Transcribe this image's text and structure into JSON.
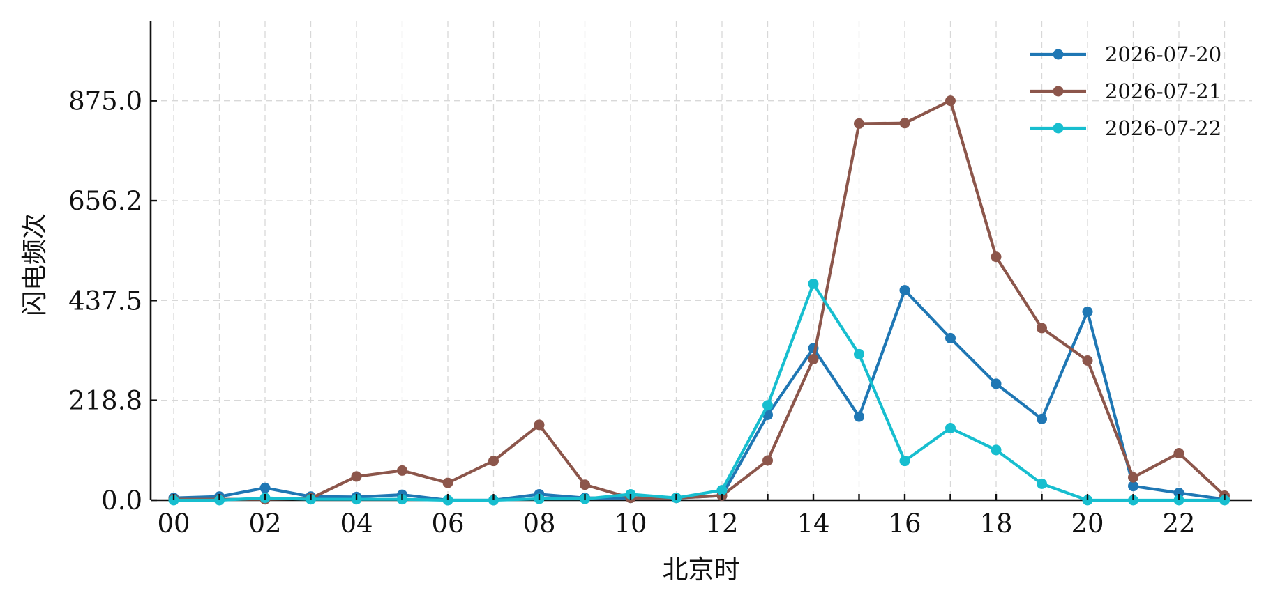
{
  "chart_data": {
    "type": "line",
    "title": "",
    "xlabel": "北京时",
    "ylabel": "闪电频次",
    "x": [
      "00",
      "01",
      "02",
      "03",
      "04",
      "05",
      "06",
      "07",
      "08",
      "09",
      "10",
      "11",
      "12",
      "13",
      "14",
      "15",
      "16",
      "17",
      "18",
      "19",
      "20",
      "21",
      "22",
      "23"
    ],
    "x_tick_labels": [
      "00",
      "02",
      "04",
      "06",
      "08",
      "10",
      "12",
      "14",
      "16",
      "18",
      "20",
      "22"
    ],
    "y_ticks": [
      0.0,
      218.8,
      437.5,
      656.2,
      875.0
    ],
    "y_tick_labels": [
      "0.0",
      "218.8",
      "437.5",
      "656.2",
      "875.0"
    ],
    "ylim": [
      0,
      1050
    ],
    "grid": true,
    "legend_position": "top-right",
    "series": [
      {
        "name": "2026-07-20",
        "color": "#1f77b4",
        "values": [
          5,
          8,
          27,
          8,
          7,
          12,
          0,
          0,
          13,
          5,
          5,
          5,
          10,
          187,
          333,
          183,
          460,
          355,
          255,
          178,
          413,
          31,
          16,
          2
        ]
      },
      {
        "name": "2026-07-21",
        "color": "#8c564b",
        "values": [
          2,
          2,
          2,
          4,
          52,
          65,
          38,
          86,
          165,
          34,
          5,
          5,
          10,
          87,
          309,
          825,
          826,
          875,
          533,
          377,
          306,
          50,
          103,
          10
        ]
      },
      {
        "name": "2026-07-22",
        "color": "#17becf",
        "values": [
          0,
          0,
          5,
          2,
          2,
          2,
          0,
          0,
          3,
          3,
          13,
          5,
          22,
          208,
          474,
          320,
          86,
          158,
          110,
          36,
          0,
          0,
          0,
          0
        ]
      }
    ]
  }
}
